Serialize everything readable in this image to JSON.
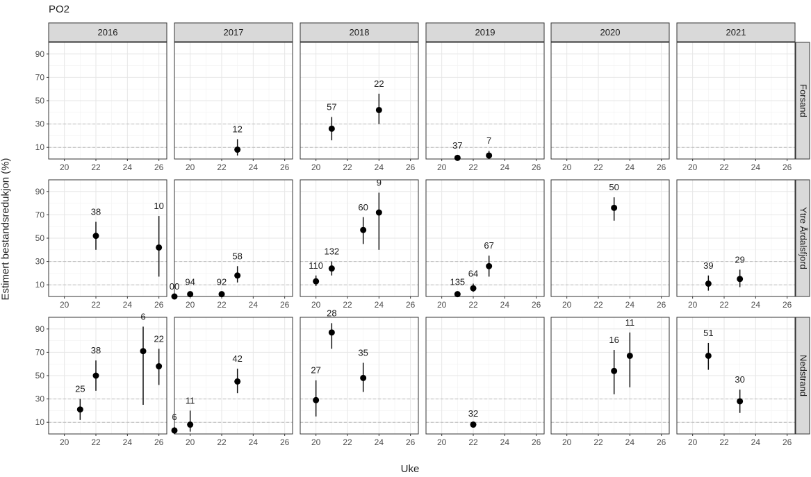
{
  "chart_data": {
    "type": "scatter",
    "title": "PO2",
    "xlabel": "Uke",
    "ylabel": "Estimert bestandsredukjon (%)",
    "xlim": [
      19,
      26.5
    ],
    "ylim": [
      0,
      100
    ],
    "x_ticks": [
      20,
      22,
      24,
      26
    ],
    "y_ticks": [
      10,
      30,
      50,
      70,
      90
    ],
    "reference_lines": [
      10,
      30
    ],
    "grid": true,
    "columns": [
      "2016",
      "2017",
      "2018",
      "2019",
      "2020",
      "2021"
    ],
    "rows": [
      "Forsand",
      "Ytre Årdalsfjord",
      "Nedstrand"
    ],
    "panels": [
      {
        "row": "Forsand",
        "col": "2017",
        "points": [
          {
            "x": 23,
            "y": 8,
            "lo": 3,
            "hi": 17,
            "label": "12"
          }
        ]
      },
      {
        "row": "Forsand",
        "col": "2018",
        "points": [
          {
            "x": 21,
            "y": 26,
            "lo": 16,
            "hi": 36,
            "label": "57"
          },
          {
            "x": 24,
            "y": 42,
            "lo": 30,
            "hi": 56,
            "label": "22"
          }
        ]
      },
      {
        "row": "Forsand",
        "col": "2019",
        "points": [
          {
            "x": 21,
            "y": 1,
            "lo": 0,
            "hi": 3,
            "label": "37"
          },
          {
            "x": 23,
            "y": 3,
            "lo": 0,
            "hi": 7,
            "label": "7"
          }
        ]
      },
      {
        "row": "Ytre Årdalsfjord",
        "col": "2016",
        "points": [
          {
            "x": 22,
            "y": 52,
            "lo": 40,
            "hi": 64,
            "label": "38"
          },
          {
            "x": 26,
            "y": 42,
            "lo": 17,
            "hi": 69,
            "label": "10"
          }
        ]
      },
      {
        "row": "Ytre Årdalsfjord",
        "col": "2017",
        "points": [
          {
            "x": 19,
            "y": 0,
            "lo": 0,
            "hi": 0,
            "label": "00"
          },
          {
            "x": 20,
            "y": 2,
            "lo": 0,
            "hi": 4,
            "label": "94"
          },
          {
            "x": 22,
            "y": 2,
            "lo": 0,
            "hi": 4,
            "label": "92"
          },
          {
            "x": 23,
            "y": 18,
            "lo": 12,
            "hi": 26,
            "label": "58"
          }
        ]
      },
      {
        "row": "Ytre Årdalsfjord",
        "col": "2018",
        "points": [
          {
            "x": 20,
            "y": 13,
            "lo": 9,
            "hi": 18,
            "label": "110"
          },
          {
            "x": 21,
            "y": 24,
            "lo": 18,
            "hi": 30,
            "label": "132"
          },
          {
            "x": 23,
            "y": 57,
            "lo": 45,
            "hi": 68,
            "label": "60"
          },
          {
            "x": 24,
            "y": 72,
            "lo": 40,
            "hi": 89,
            "label": "9"
          }
        ]
      },
      {
        "row": "Ytre Årdalsfjord",
        "col": "2019",
        "points": [
          {
            "x": 21,
            "y": 2,
            "lo": 0,
            "hi": 4,
            "label": "135"
          },
          {
            "x": 22,
            "y": 7,
            "lo": 4,
            "hi": 11,
            "label": "64"
          },
          {
            "x": 23,
            "y": 26,
            "lo": 17,
            "hi": 35,
            "label": "67"
          }
        ]
      },
      {
        "row": "Ytre Årdalsfjord",
        "col": "2020",
        "points": [
          {
            "x": 23,
            "y": 76,
            "lo": 65,
            "hi": 85,
            "label": "50"
          }
        ]
      },
      {
        "row": "Ytre Årdalsfjord",
        "col": "2021",
        "points": [
          {
            "x": 21,
            "y": 11,
            "lo": 5,
            "hi": 18,
            "label": "39"
          },
          {
            "x": 23,
            "y": 15,
            "lo": 8,
            "hi": 23,
            "label": "29"
          }
        ]
      },
      {
        "row": "Nedstrand",
        "col": "2016",
        "points": [
          {
            "x": 21,
            "y": 21,
            "lo": 12,
            "hi": 30,
            "label": "25"
          },
          {
            "x": 22,
            "y": 50,
            "lo": 37,
            "hi": 63,
            "label": "38"
          },
          {
            "x": 25,
            "y": 71,
            "lo": 25,
            "hi": 92,
            "label": "6"
          },
          {
            "x": 26,
            "y": 58,
            "lo": 42,
            "hi": 73,
            "label": "22"
          }
        ]
      },
      {
        "row": "Nedstrand",
        "col": "2017",
        "points": [
          {
            "x": 19,
            "y": 3,
            "lo": 0,
            "hi": 6,
            "label": "6"
          },
          {
            "x": 20,
            "y": 8,
            "lo": 2,
            "hi": 20,
            "label": "11"
          },
          {
            "x": 23,
            "y": 45,
            "lo": 35,
            "hi": 56,
            "label": "42"
          }
        ]
      },
      {
        "row": "Nedstrand",
        "col": "2018",
        "points": [
          {
            "x": 20,
            "y": 29,
            "lo": 15,
            "hi": 46,
            "label": "27"
          },
          {
            "x": 21,
            "y": 87,
            "lo": 73,
            "hi": 95,
            "label": "28"
          },
          {
            "x": 23,
            "y": 48,
            "lo": 36,
            "hi": 61,
            "label": "35"
          }
        ]
      },
      {
        "row": "Nedstrand",
        "col": "2019",
        "points": [
          {
            "x": 22,
            "y": 8,
            "lo": 7,
            "hi": 9,
            "label": "32"
          }
        ]
      },
      {
        "row": "Nedstrand",
        "col": "2020",
        "points": [
          {
            "x": 23,
            "y": 54,
            "lo": 34,
            "hi": 72,
            "label": "16"
          },
          {
            "x": 24,
            "y": 67,
            "lo": 40,
            "hi": 87,
            "label": "11"
          }
        ]
      },
      {
        "row": "Nedstrand",
        "col": "2021",
        "points": [
          {
            "x": 21,
            "y": 67,
            "lo": 55,
            "hi": 78,
            "label": "51"
          },
          {
            "x": 23,
            "y": 28,
            "lo": 18,
            "hi": 38,
            "label": "30"
          }
        ]
      }
    ]
  }
}
